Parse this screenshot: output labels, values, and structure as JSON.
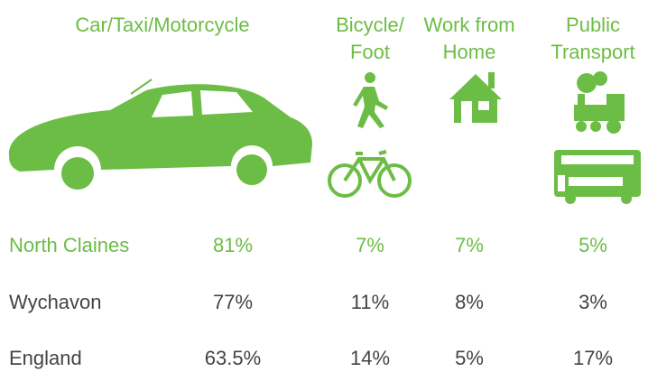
{
  "headers": [
    {
      "lines": [
        "Car/Taxi/Motorcycle"
      ]
    },
    {
      "lines": [
        "Bicycle/",
        "Foot"
      ]
    },
    {
      "lines": [
        "Work from",
        "Home"
      ]
    },
    {
      "lines": [
        "Public",
        "Transport"
      ]
    }
  ],
  "rows": [
    {
      "label": "North Claines",
      "cells": [
        "81%",
        "7%",
        "7%",
        "5%"
      ]
    },
    {
      "label": "Wychavon",
      "cells": [
        "77%",
        "11%",
        "8%",
        "3%"
      ]
    },
    {
      "label": "England",
      "cells": [
        "63.5%",
        "14%",
        "5%",
        "17%"
      ]
    }
  ]
}
